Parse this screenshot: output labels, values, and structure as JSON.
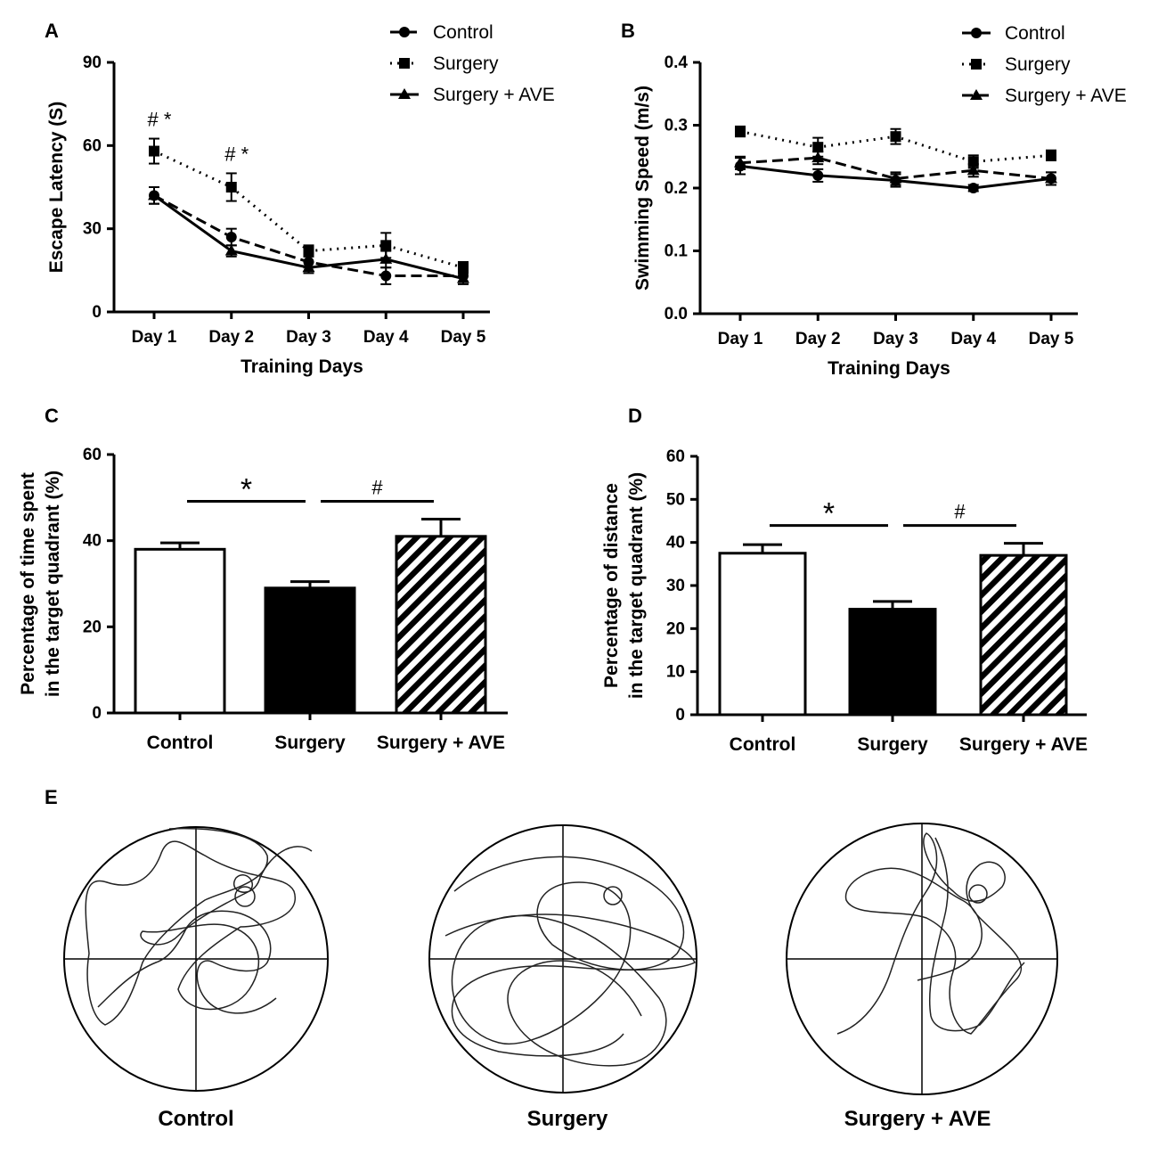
{
  "panel_labels": {
    "A": "A",
    "B": "B",
    "C": "C",
    "D": "D",
    "E": "E"
  },
  "chart_data": [
    {
      "id": "A",
      "type": "line",
      "title": "",
      "xlabel": "Training Days",
      "ylabel": "Escape Latency (S)",
      "categories": [
        "Day 1",
        "Day 2",
        "Day 3",
        "Day 4",
        "Day 5"
      ],
      "ylim": [
        0,
        90
      ],
      "yticks": [
        "0",
        "30",
        "60",
        "90"
      ],
      "legend_position": "top-right",
      "series": [
        {
          "name": "Control",
          "marker": "circle",
          "line": "dashed",
          "values": [
            42,
            27,
            18,
            13,
            13
          ],
          "errors": [
            3,
            3,
            2,
            3,
            2
          ]
        },
        {
          "name": "Surgery",
          "marker": "square",
          "line": "dotted",
          "values": [
            58,
            45,
            22,
            24,
            16
          ],
          "errors": [
            4.5,
            5,
            2,
            4.5,
            2
          ]
        },
        {
          "name": "Surgery + AVE",
          "marker": "triangle",
          "line": "solid",
          "values": [
            42,
            22,
            16,
            19,
            12
          ],
          "errors": [
            3,
            2,
            2,
            3,
            2
          ]
        }
      ],
      "annotations": [
        {
          "category": "Day 1",
          "text": "# *"
        },
        {
          "category": "Day 2",
          "text": "# *"
        }
      ]
    },
    {
      "id": "B",
      "type": "line",
      "title": "",
      "xlabel": "Training Days",
      "ylabel": "Swimming Speed (m/s)",
      "categories": [
        "Day 1",
        "Day 2",
        "Day 3",
        "Day 4",
        "Day 5"
      ],
      "ylim": [
        0,
        0.4
      ],
      "yticks": [
        "0.0",
        "0.1",
        "0.2",
        "0.3",
        "0.4"
      ],
      "legend_position": "top-right",
      "series": [
        {
          "name": "Control",
          "marker": "circle",
          "line": "solid",
          "values": [
            0.235,
            0.22,
            0.212,
            0.2,
            0.215
          ],
          "errors": [
            0.013,
            0.01,
            0.01,
            0.005,
            0.01
          ]
        },
        {
          "name": "Surgery",
          "marker": "square",
          "line": "dotted",
          "values": [
            0.29,
            0.265,
            0.282,
            0.242,
            0.252
          ],
          "errors": [
            0.008,
            0.015,
            0.012,
            0.01,
            0.008
          ]
        },
        {
          "name": "Surgery + AVE",
          "marker": "triangle",
          "line": "dashed",
          "values": [
            0.24,
            0.248,
            0.215,
            0.228,
            0.215
          ],
          "errors": [
            0.01,
            0.01,
            0.01,
            0.01,
            0.01
          ]
        }
      ],
      "annotations": []
    },
    {
      "id": "C",
      "type": "bar",
      "title": "",
      "xlabel": "",
      "ylabel_line1": "Percentage of time spent",
      "ylabel_line2": "in the target quadrant (%)",
      "categories": [
        "Control",
        "Surgery",
        "Surgery + AVE"
      ],
      "fills": [
        "white",
        "black",
        "hatched"
      ],
      "values": [
        38,
        29,
        41
      ],
      "errors": [
        1.5,
        1.5,
        4
      ],
      "ylim": [
        0,
        60
      ],
      "yticks": [
        "0",
        "20",
        "40",
        "60"
      ],
      "comparisons": [
        {
          "from": "Control",
          "to": "Surgery",
          "symbol": "*"
        },
        {
          "from": "Surgery",
          "to": "Surgery + AVE",
          "symbol": "#"
        }
      ]
    },
    {
      "id": "D",
      "type": "bar",
      "title": "",
      "xlabel": "",
      "ylabel_line1": "Percentage of  distance",
      "ylabel_line2": "in the target quadrant (%)",
      "categories": [
        "Control",
        "Surgery",
        "Surgery + AVE"
      ],
      "fills": [
        "white",
        "black",
        "hatched"
      ],
      "values": [
        37.5,
        24.5,
        37
      ],
      "errors": [
        2,
        1.8,
        2.8
      ],
      "ylim": [
        0,
        60
      ],
      "yticks": [
        "0",
        "10",
        "20",
        "30",
        "40",
        "50",
        "60"
      ],
      "comparisons": [
        {
          "from": "Control",
          "to": "Surgery",
          "symbol": "*"
        },
        {
          "from": "Surgery",
          "to": "Surgery + AVE",
          "symbol": "#"
        }
      ]
    }
  ],
  "maze": {
    "labels": [
      "Control",
      "Surgery",
      "Surgery + AVE"
    ]
  }
}
